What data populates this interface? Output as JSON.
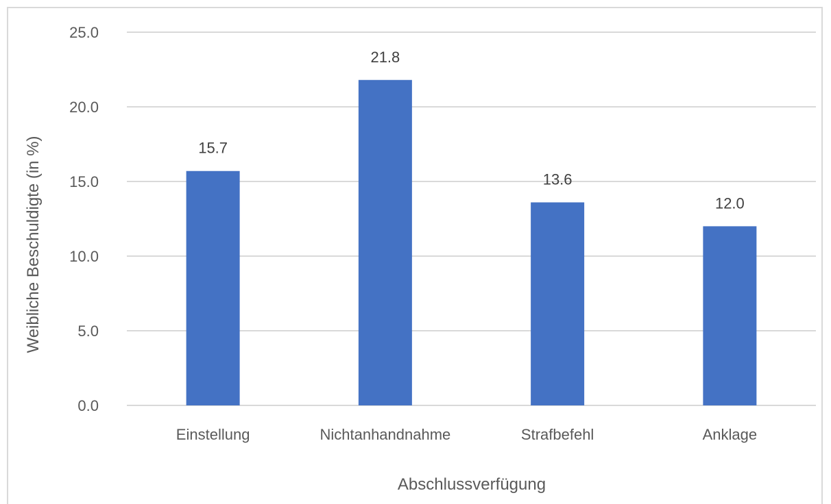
{
  "chart_data": {
    "type": "bar",
    "categories": [
      "Einstellung",
      "Nichtanhandnahme",
      "Strafbefehl",
      "Anklage"
    ],
    "values": [
      15.7,
      21.8,
      13.6,
      12.0
    ],
    "data_labels": [
      "15.7",
      "21.8",
      "13.6",
      "12.0"
    ],
    "title": "",
    "xlabel": "Abschlussverfügung",
    "ylabel": "Weibliche Beschuldigte (in %)",
    "ylim": [
      0,
      25
    ],
    "yticks": [
      0,
      5,
      10,
      15,
      20,
      25
    ],
    "ytick_labels": [
      "0.0",
      "5.0",
      "10.0",
      "15.0",
      "20.0",
      "25.0"
    ],
    "grid": true,
    "bar_color": "#4472c4",
    "grid_color": "#d9d9d9"
  }
}
